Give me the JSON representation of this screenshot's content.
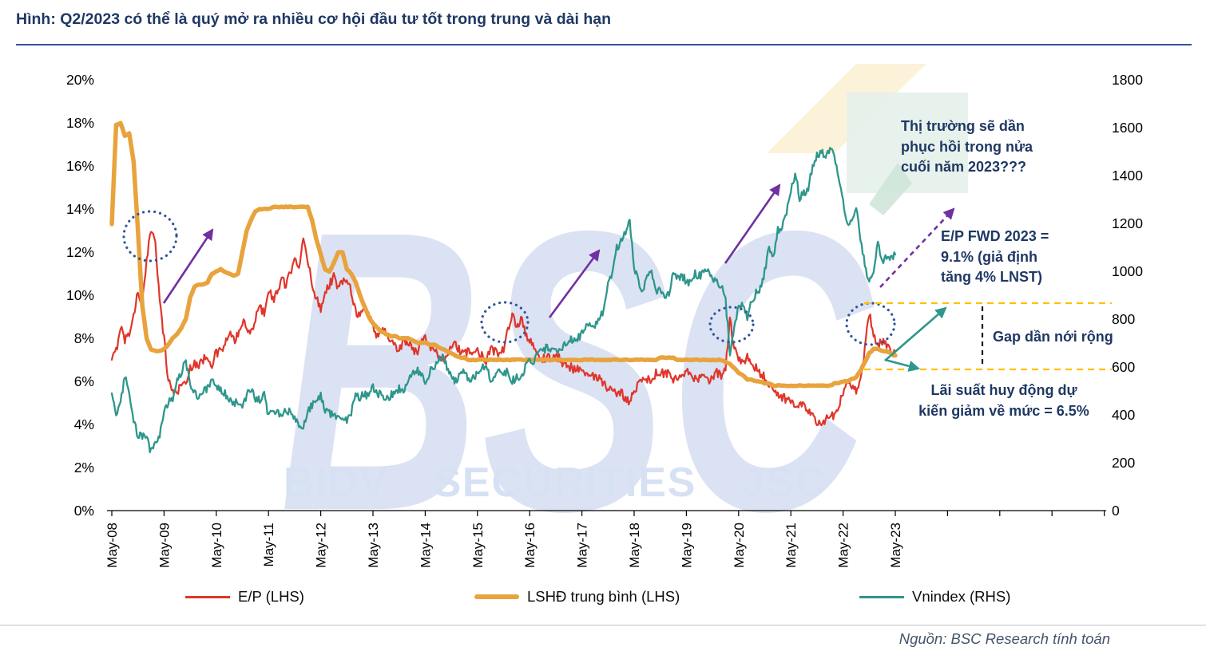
{
  "page": {
    "title": "Hình: Q2/2023 có thể là quý mở ra nhiều cơ hội đầu tư tốt trong trung và dài hạn",
    "source": "Nguồn: BSC Research tính toán"
  },
  "watermark": {
    "logo": "BSC",
    "subtitle": "BIDV SECURITIES JSC"
  },
  "annotations": {
    "market_recovery": "Thị trường sẽ dần phục hồi trong nửa cuối năm 2023???",
    "ep_forward": "E/P FWD 2023 = 9.1% (giả định tăng 4% LNST)",
    "gap": "Gap dần nới rộng",
    "deposit_rate": "Lãi suất huy động dự kiến giảm về mức = 6.5%"
  },
  "legend": [
    {
      "label": "E/P (LHS)",
      "color": "#e0352b"
    },
    {
      "label": "LSHĐ trung bình (LHS)",
      "color": "#e8a33d"
    },
    {
      "label": "Vnindex (RHS)",
      "color": "#2e968c"
    }
  ],
  "colors": {
    "title_navy": "#1f3864",
    "arrow_purple": "#7030a0",
    "dotted_circle_blue": "#2f5597",
    "dashed_yellow": "#ffc000"
  },
  "chart_data": {
    "type": "line",
    "frequency": "monthly",
    "x_start": "May-08",
    "x_end": "May-23",
    "x_tick_labels": [
      "May-08",
      "May-09",
      "May-10",
      "May-11",
      "May-12",
      "May-13",
      "May-14",
      "May-15",
      "May-16",
      "May-17",
      "May-18",
      "May-19",
      "May-20",
      "May-21",
      "May-22",
      "May-23"
    ],
    "left_axis": {
      "min": 0,
      "max": 20,
      "ticks": [
        "0%",
        "2%",
        "4%",
        "6%",
        "8%",
        "10%",
        "12%",
        "14%",
        "16%",
        "18%",
        "20%"
      ]
    },
    "right_axis": {
      "min": 0,
      "max": 1800,
      "ticks": [
        "0",
        "200",
        "400",
        "600",
        "800",
        "1000",
        "1200",
        "1400",
        "1600",
        "1800"
      ]
    },
    "grid": false,
    "legend_position": "bottom",
    "series": [
      {
        "name": "E/P (LHS)",
        "axis": "left",
        "unit": "%",
        "color": "#e0352b",
        "values": [
          7.0,
          7.4,
          8.6,
          7.9,
          8.3,
          9.0,
          10.2,
          9.6,
          11.5,
          13.1,
          12.6,
          9.7,
          8.0,
          6.0,
          5.6,
          5.4,
          6.0,
          5.8,
          6.6,
          6.9,
          6.7,
          7.0,
          7.2,
          6.8,
          7.3,
          7.4,
          7.7,
          8.2,
          7.9,
          8.1,
          8.8,
          8.4,
          8.2,
          9.0,
          9.4,
          9.2,
          10.3,
          9.8,
          10.1,
          10.8,
          10.4,
          11.0,
          11.9,
          11.3,
          12.5,
          11.6,
          10.6,
          9.8,
          9.4,
          10.2,
          10.5,
          10.9,
          10.3,
          10.6,
          10.9,
          10.2,
          9.3,
          9.0,
          9.4,
          9.1,
          8.6,
          8.1,
          8.4,
          8.3,
          7.9,
          7.7,
          7.4,
          7.9,
          7.8,
          7.5,
          7.3,
          7.9,
          8.1,
          7.7,
          7.5,
          7.2,
          7.0,
          7.3,
          7.5,
          7.7,
          7.4,
          7.2,
          7.5,
          7.3,
          7.4,
          7.2,
          7.0,
          7.6,
          7.4,
          7.2,
          7.5,
          8.3,
          9.0,
          8.6,
          8.9,
          8.3,
          7.9,
          7.5,
          7.2,
          7.0,
          7.2,
          7.0,
          7.2,
          7.0,
          6.8,
          6.7,
          6.6,
          6.7,
          6.5,
          6.3,
          6.2,
          6.3,
          6.1,
          5.9,
          5.5,
          5.6,
          5.3,
          5.5,
          5.2,
          5.1,
          5.6,
          5.9,
          6.3,
          6.1,
          5.9,
          6.4,
          6.3,
          6.4,
          6.3,
          6.0,
          6.1,
          6.2,
          6.4,
          6.3,
          6.1,
          6.2,
          6.1,
          6.0,
          6.2,
          6.4,
          6.3,
          6.6,
          8.8,
          7.6,
          7.0,
          6.8,
          7.1,
          6.8,
          6.6,
          6.4,
          6.2,
          5.8,
          5.6,
          5.4,
          5.3,
          5.1,
          5.2,
          4.7,
          4.9,
          4.8,
          4.6,
          4.4,
          4.0,
          4.1,
          4.2,
          4.4,
          4.3,
          4.8,
          5.5,
          5.9,
          5.7,
          5.5,
          6.2,
          7.5,
          9.2,
          8.2,
          7.7,
          7.9,
          7.6,
          7.4,
          7.2
        ]
      },
      {
        "name": "LSHĐ trung bình (LHS)",
        "axis": "left",
        "unit": "%",
        "color": "#e8a33d",
        "values": [
          13.3,
          17.9,
          18.0,
          17.4,
          17.5,
          16.2,
          13.0,
          9.5,
          8.0,
          7.5,
          7.4,
          7.4,
          7.5,
          7.7,
          8.0,
          8.2,
          8.5,
          8.9,
          9.9,
          10.4,
          10.5,
          10.5,
          10.6,
          11.0,
          11.1,
          11.2,
          11.1,
          11.0,
          10.9,
          11.0,
          12.0,
          13.0,
          13.5,
          13.9,
          14.0,
          14.0,
          14.0,
          14.1,
          14.1,
          14.1,
          14.1,
          14.1,
          14.1,
          14.1,
          14.1,
          14.1,
          13.5,
          12.6,
          11.9,
          11.2,
          11.1,
          11.5,
          12.0,
          12.0,
          11.2,
          11.0,
          10.6,
          10.0,
          9.5,
          9.0,
          8.7,
          8.5,
          8.3,
          8.2,
          8.1,
          8.1,
          8.0,
          8.0,
          8.0,
          7.9,
          7.8,
          7.8,
          7.8,
          7.7,
          7.7,
          7.6,
          7.5,
          7.4,
          7.3,
          7.2,
          7.1,
          7.1,
          7.0,
          7.0,
          7.0,
          7.0,
          7.0,
          7.0,
          7.0,
          7.0,
          7.0,
          7.0,
          7.0,
          7.0,
          7.0,
          7.0,
          7.0,
          7.0,
          7.0,
          7.0,
          7.0,
          7.0,
          7.0,
          7.0,
          7.0,
          7.0,
          7.0,
          7.0,
          7.0,
          7.0,
          7.0,
          7.0,
          7.0,
          7.0,
          7.0,
          7.0,
          7.0,
          7.0,
          7.0,
          7.0,
          7.0,
          7.0,
          7.0,
          7.0,
          7.0,
          7.0,
          7.1,
          7.1,
          7.1,
          7.1,
          7.0,
          7.0,
          7.0,
          7.0,
          7.0,
          7.0,
          7.0,
          7.0,
          7.0,
          7.0,
          7.0,
          6.9,
          6.8,
          6.6,
          6.4,
          6.3,
          6.1,
          6.1,
          6.0,
          6.0,
          5.9,
          5.9,
          5.8,
          5.8,
          5.8,
          5.8,
          5.8,
          5.8,
          5.8,
          5.8,
          5.8,
          5.8,
          5.8,
          5.8,
          5.8,
          5.8,
          5.9,
          5.9,
          6.0,
          6.0,
          6.1,
          6.2,
          6.5,
          6.9,
          7.3,
          7.5,
          7.5,
          7.4,
          7.4,
          7.3,
          7.2
        ]
      },
      {
        "name": "Vnindex (RHS)",
        "axis": "right",
        "unit": "points",
        "color": "#2e968c",
        "values": [
          490,
          400,
          450,
          560,
          480,
          370,
          320,
          310,
          300,
          245,
          280,
          320,
          410,
          450,
          470,
          550,
          580,
          620,
          530,
          490,
          480,
          500,
          510,
          540,
          510,
          510,
          490,
          460,
          450,
          450,
          430,
          480,
          510,
          470,
          460,
          480,
          400,
          430,
          410,
          380,
          420,
          410,
          380,
          350,
          350,
          410,
          440,
          470,
          480,
          420,
          410,
          390,
          390,
          390,
          380,
          410,
          480,
          470,
          490,
          470,
          520,
          480,
          490,
          470,
          480,
          500,
          510,
          500,
          550,
          580,
          590,
          570,
          530,
          580,
          600,
          630,
          640,
          600,
          570,
          540,
          580,
          590,
          550,
          560,
          570,
          590,
          620,
          530,
          560,
          600,
          570,
          580,
          540,
          560,
          560,
          600,
          620,
          630,
          650,
          670,
          680,
          680,
          660,
          660,
          690,
          710,
          720,
          720,
          740,
          780,
          780,
          770,
          800,
          840,
          950,
          980,
          1100,
          1120,
          1170,
          1200,
          1020,
          960,
          910,
          990,
          1010,
          910,
          930,
          890,
          910,
          990,
          980,
          980,
          960,
          950,
          990,
          980,
          1000,
          1000,
          970,
          960,
          940,
          880,
          660,
          770,
          860,
          850,
          800,
          880,
          910,
          930,
          1000,
          1100,
          1060,
          1170,
          1190,
          1240,
          1330,
          1410,
          1310,
          1330,
          1340,
          1440,
          1480,
          1500,
          1480,
          1500,
          1490,
          1370,
          1290,
          1200,
          1210,
          1280,
          1130,
          1030,
          950,
          1010,
          1110,
          1040,
          1060,
          1050,
          1070
        ]
      }
    ]
  }
}
